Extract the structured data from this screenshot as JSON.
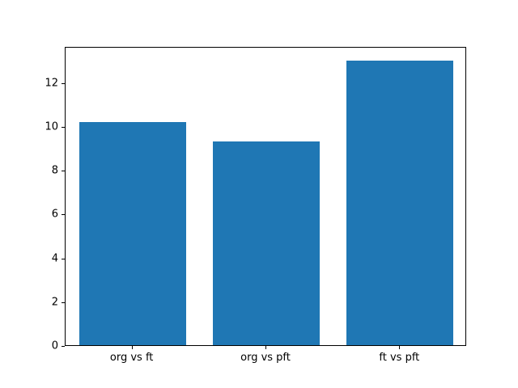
{
  "chart_data": {
    "type": "bar",
    "categories": [
      "org vs ft",
      "org vs pft",
      "ft vs pft"
    ],
    "values": [
      10.2,
      9.3,
      13.0
    ],
    "title": "",
    "xlabel": "",
    "ylabel": "",
    "ylim": [
      0,
      13.65
    ],
    "yticks": [
      0,
      2,
      4,
      6,
      8,
      10,
      12
    ],
    "bar_color": "#1f77b4",
    "bar_width_fraction": 0.8,
    "grid": false,
    "legend": "none",
    "background": "#ffffff",
    "spine_color": "#000000"
  }
}
